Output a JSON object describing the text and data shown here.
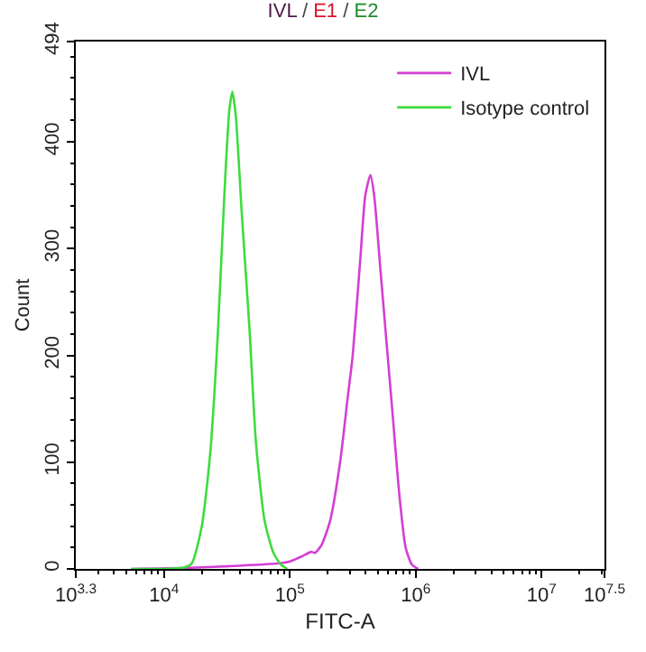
{
  "chart_data": {
    "type": "line",
    "title": "IVL / E1 / E2",
    "xlabel": "FITC-A",
    "ylabel": "Count",
    "log": "x",
    "xlim": [
      1995,
      31623000
    ],
    "xticks": [
      {
        "value": 1995,
        "label": "10$^{3.3}$"
      },
      {
        "value": 10000,
        "label": "10$^{4}$"
      },
      {
        "value": 100000,
        "label": "10$^{5}$"
      },
      {
        "value": 1000000,
        "label": "10$^{6}$"
      },
      {
        "value": 10000000,
        "label": "10$^{7}$"
      },
      {
        "value": 31623000,
        "label": "10$^{7.5}$"
      }
    ],
    "ylim": [
      0,
      494
    ],
    "yticks": [
      0,
      100,
      200,
      300,
      400,
      494
    ],
    "legend": "top right",
    "marker": "none",
    "line_style": "solid",
    "series": [
      {
        "name": "IVL",
        "color": "#d43fd4",
        "x": [
          5500,
          15800,
          39800,
          79400,
          100000,
          126000,
          148000,
          158000,
          178000,
          209000,
          251000,
          288000,
          316000,
          363000,
          398000,
          437000,
          468000,
          525000,
          589000,
          661000,
          741000,
          832000,
          933000,
          1047000
        ],
        "values": [
          0,
          1,
          3,
          5,
          7,
          12,
          16,
          15,
          22,
          45,
          100,
          160,
          200,
          290,
          350,
          369,
          350,
          280,
          210,
          140,
          70,
          20,
          4,
          0
        ]
      },
      {
        "name": "Isotype control",
        "color": "#3ddc3d",
        "x": [
          5500,
          10000,
          14100,
          16600,
          20000,
          23400,
          26900,
          30200,
          33100,
          35000,
          37200,
          41700,
          47900,
          53700,
          63100,
          74100,
          85100,
          95500
        ],
        "values": [
          0,
          0,
          1,
          5,
          40,
          110,
          224,
          350,
          430,
          447,
          425,
          330,
          224,
          120,
          45,
          15,
          4,
          0
        ]
      }
    ]
  }
}
